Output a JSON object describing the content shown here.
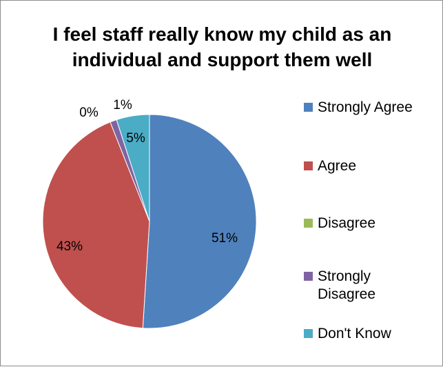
{
  "chart_data": {
    "type": "pie",
    "title_lines": [
      "I feel staff really know my child as an",
      "individual and support them well"
    ],
    "categories": [
      "Strongly Agree",
      "Agree",
      "Disagree",
      "Strongly Disagree",
      "Don't Know"
    ],
    "legend_lines": [
      [
        "Strongly Agree"
      ],
      [
        "Agree"
      ],
      [
        "Disagree"
      ],
      [
        "Strongly",
        "Disagree"
      ],
      [
        "Don't Know"
      ]
    ],
    "values": [
      51,
      43,
      0,
      1,
      5
    ],
    "data_labels": [
      "51%",
      "43%",
      "0%",
      "1%",
      "5%"
    ],
    "colors": [
      "#4F81BD",
      "#C0504D",
      "#9BBB59",
      "#8064A2",
      "#4BACC6"
    ],
    "start_angle": "12 o'clock, clockwise",
    "legend_position": "right"
  }
}
